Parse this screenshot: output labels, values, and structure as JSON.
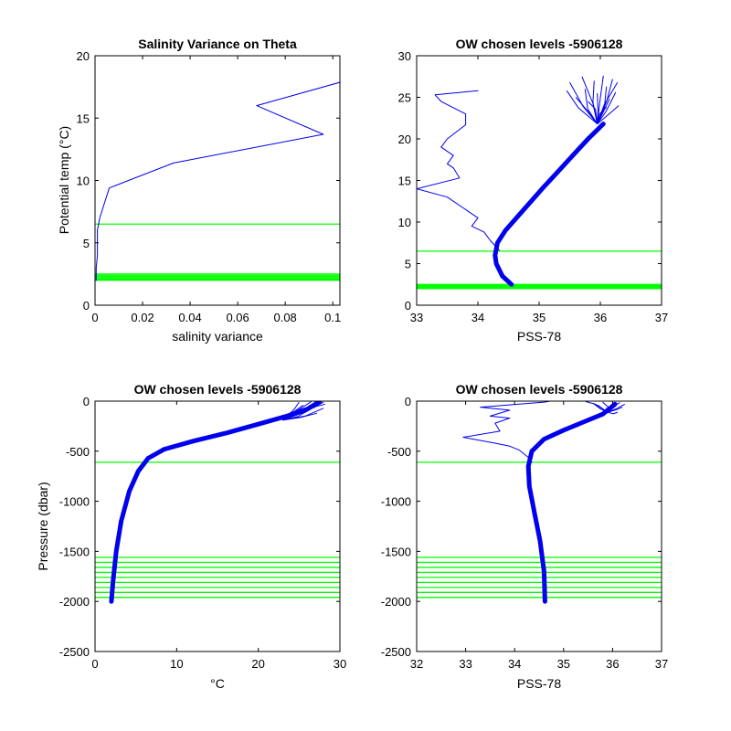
{
  "colors": {
    "profile": "#0000ee",
    "levels": "#00ff00",
    "axis": "#000000"
  },
  "chart_data": [
    {
      "type": "line",
      "title": "Salinity Variance on Theta",
      "xlabel": "salinity variance",
      "ylabel": "Potential temp (°C)",
      "xlim": [
        0,
        0.103
      ],
      "ylim": [
        0,
        20
      ],
      "xticks": [
        "0",
        "0.02",
        "0.04",
        "0.06",
        "0.08",
        "0.1"
      ],
      "yticks": [
        "0",
        "5",
        "10",
        "15",
        "20"
      ],
      "grid": false,
      "series": [
        {
          "kind": "profile",
          "x": [
            0.1035,
            0.068,
            0.096,
            0.033,
            0.006,
            0.002,
            0.001,
            0.001,
            0.0005,
            0.0005
          ],
          "y": [
            17.9,
            16.0,
            13.7,
            11.4,
            9.4,
            7.0,
            6.0,
            4.0,
            3.0,
            2.0
          ]
        }
      ],
      "levels": [
        6.5,
        2.0,
        2.1,
        2.2,
        2.3,
        2.4,
        2.5
      ]
    },
    {
      "type": "line",
      "title": "OW chosen levels -5906128",
      "xlabel": "PSS-78",
      "ylabel": "",
      "xlim": [
        33,
        37
      ],
      "ylim": [
        0,
        30
      ],
      "xticks": [
        "33",
        "34",
        "35",
        "36",
        "37"
      ],
      "yticks": [
        "0",
        "5",
        "10",
        "15",
        "20",
        "25",
        "30"
      ],
      "grid": false,
      "series": [
        {
          "kind": "variance",
          "x": [
            34.0,
            33.3,
            33.4,
            33.8,
            33.8,
            33.5,
            33.4,
            33.6,
            33.5,
            33.6,
            33.7,
            33.0,
            33.5,
            33.9,
            34.0,
            33.9,
            34.1,
            34.2,
            34.35
          ],
          "y": [
            25.8,
            25.3,
            24.5,
            23.0,
            21.7,
            20.0,
            19.0,
            18.0,
            17.0,
            16.5,
            15.3,
            14.0,
            13.0,
            11.0,
            10.5,
            9.5,
            8.8,
            7.8,
            6.6
          ]
        },
        {
          "kind": "band",
          "x": [
            34.55,
            34.4,
            34.3,
            34.28,
            34.32,
            34.45,
            34.75,
            35.05,
            35.3,
            35.55,
            35.8,
            36.05
          ],
          "y": [
            2.5,
            3.5,
            5.0,
            6.0,
            7.5,
            9.0,
            11.5,
            14.0,
            16.0,
            18.0,
            20.0,
            21.8
          ]
        }
      ],
      "fan": {
        "base_x": 35.95,
        "base_y": 21.8,
        "tips": [
          [
            35.45,
            25.8
          ],
          [
            35.5,
            26.8
          ],
          [
            35.6,
            25.0
          ],
          [
            35.7,
            27.5
          ],
          [
            35.75,
            26.0
          ],
          [
            35.8,
            24.5
          ],
          [
            35.9,
            27.0
          ],
          [
            35.95,
            25.5
          ],
          [
            36.05,
            27.6
          ],
          [
            36.1,
            26.3
          ],
          [
            36.15,
            24.8
          ],
          [
            36.2,
            27.2
          ],
          [
            36.25,
            25.6
          ],
          [
            36.28,
            26.8
          ],
          [
            36.3,
            24.0
          ],
          [
            36.1,
            23.8
          ]
        ]
      },
      "levels": [
        6.5,
        2.0,
        2.1,
        2.2,
        2.3,
        2.4,
        2.5
      ]
    },
    {
      "type": "line",
      "title": "OW chosen levels -5906128",
      "xlabel": "°C",
      "ylabel": "Pressure (dbar)",
      "xlim": [
        0,
        30
      ],
      "ylim": [
        -2500,
        0
      ],
      "xticks": [
        "0",
        "10",
        "20",
        "30"
      ],
      "yticks": [
        "-2500",
        "-2000",
        "-1500",
        "-1000",
        "-500",
        "0"
      ],
      "grid": false,
      "series": [
        {
          "kind": "band",
          "x": [
            2.0,
            2.2,
            2.6,
            3.2,
            4.2,
            5.3,
            6.5,
            8.5,
            12.0,
            16.0,
            20.0,
            23.5,
            26.0,
            27.5
          ],
          "y": [
            -2000,
            -1800,
            -1500,
            -1200,
            -900,
            -700,
            -570,
            -480,
            -400,
            -320,
            -230,
            -150,
            -80,
            -5
          ]
        }
      ],
      "fan": {
        "base_x": 23.0,
        "base_y": -190,
        "tips": [
          [
            26.5,
            -5
          ],
          [
            27.5,
            -5
          ],
          [
            28.0,
            -10
          ],
          [
            25.0,
            -10
          ],
          [
            27.0,
            -60
          ],
          [
            28.0,
            -70
          ],
          [
            26.0,
            -100
          ],
          [
            27.2,
            -120
          ],
          [
            25.5,
            -40
          ],
          [
            28.2,
            -30
          ]
        ]
      },
      "levels": [
        -610,
        -1560,
        -1610,
        -1660,
        -1710,
        -1760,
        -1810,
        -1860,
        -1910,
        -1960
      ]
    },
    {
      "type": "line",
      "title": "OW chosen levels -5906128",
      "xlabel": "PSS-78",
      "ylabel": "",
      "xlim": [
        32,
        37
      ],
      "ylim": [
        -2500,
        0
      ],
      "xticks": [
        "32",
        "33",
        "34",
        "35",
        "36",
        "37"
      ],
      "yticks": [
        "-2500",
        "-2000",
        "-1500",
        "-1000",
        "-500",
        "0"
      ],
      "grid": false,
      "series": [
        {
          "kind": "variance",
          "x": [
            34.7,
            34.6,
            33.3,
            33.9,
            33.5,
            33.9,
            33.6,
            33.7,
            32.95,
            33.6,
            33.9,
            34.1,
            34.2,
            34.3,
            34.35
          ],
          "y": [
            -2,
            -10,
            -60,
            -90,
            -150,
            -170,
            -220,
            -300,
            -360,
            -420,
            -450,
            -490,
            -530,
            -570,
            -610
          ]
        },
        {
          "kind": "band",
          "x": [
            34.62,
            34.6,
            34.52,
            34.4,
            34.3,
            34.28,
            34.35,
            34.6,
            35.0,
            35.4,
            35.8,
            36.05
          ],
          "y": [
            -2000,
            -1700,
            -1400,
            -1100,
            -850,
            -650,
            -500,
            -380,
            -290,
            -210,
            -130,
            -30
          ]
        }
      ],
      "fan": {
        "base_x": 35.9,
        "base_y": -110,
        "tips": [
          [
            35.45,
            -5
          ],
          [
            35.6,
            -20
          ],
          [
            35.8,
            -10
          ],
          [
            36.0,
            -5
          ],
          [
            36.15,
            -15
          ],
          [
            36.2,
            -60
          ],
          [
            36.1,
            -110
          ],
          [
            35.7,
            -40
          ],
          [
            36.25,
            -30
          ]
        ]
      },
      "levels": [
        -610,
        -1560,
        -1610,
        -1660,
        -1710,
        -1760,
        -1810,
        -1860,
        -1910,
        -1960
      ]
    }
  ]
}
